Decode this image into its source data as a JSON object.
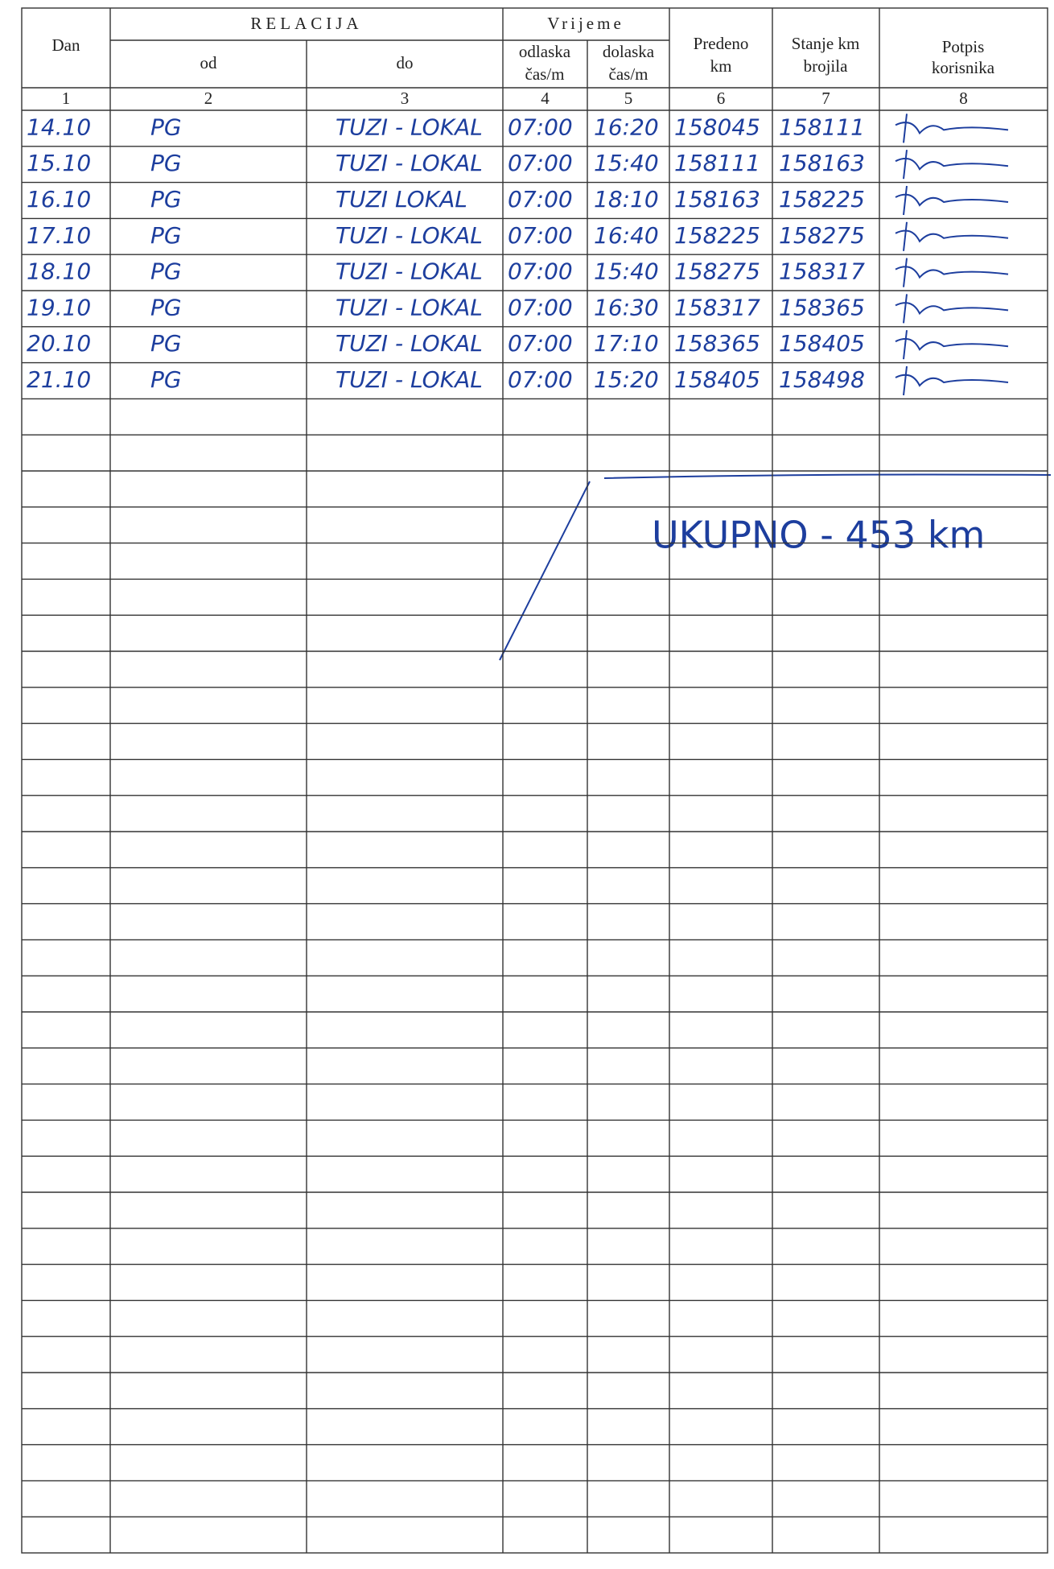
{
  "header": {
    "dan": "Dan",
    "relacija": "RELACIJA",
    "od": "od",
    "do": "do",
    "vrijeme": "Vrijeme",
    "odlaska": [
      "odlaska",
      "čas/m"
    ],
    "dolaska": [
      "dolaska",
      "čas/m"
    ],
    "predeno": [
      "Predeno",
      "km"
    ],
    "stanje": [
      "Stanje km",
      "brojila"
    ],
    "potpis": [
      "Potpis",
      "korisnika"
    ]
  },
  "column_numbers": [
    "1",
    "2",
    "3",
    "4",
    "5",
    "6",
    "7",
    "8"
  ],
  "rows": [
    [
      "14.10",
      "PG",
      "TUZI - LOKAL",
      "07:00",
      "16:20",
      "158045",
      "158111"
    ],
    [
      "15.10",
      "PG",
      "TUZI - LOKAL",
      "07:00",
      "15:40",
      "158111",
      "158163"
    ],
    [
      "16.10",
      "PG",
      "TUZI LOKAL",
      "07:00",
      "18:10",
      "158163",
      "158225"
    ],
    [
      "17.10",
      "PG",
      "TUZI - LOKAL",
      "07:00",
      "16:40",
      "158225",
      "158275"
    ],
    [
      "18.10",
      "PG",
      "TUZI - LOKAL",
      "07:00",
      "15:40",
      "158275",
      "158317"
    ],
    [
      "19.10",
      "PG",
      "TUZI - LOKAL",
      "07:00",
      "16:30",
      "158317",
      "158365"
    ],
    [
      "20.10",
      "PG",
      "TUZI - LOKAL",
      "07:00",
      "17:10",
      "158365",
      "158405"
    ],
    [
      "21.10",
      "PG",
      "TUZI - LOKAL",
      "07:00",
      "15:20",
      "158405",
      "158498"
    ]
  ],
  "total": "UKUPNO - 453 km"
}
